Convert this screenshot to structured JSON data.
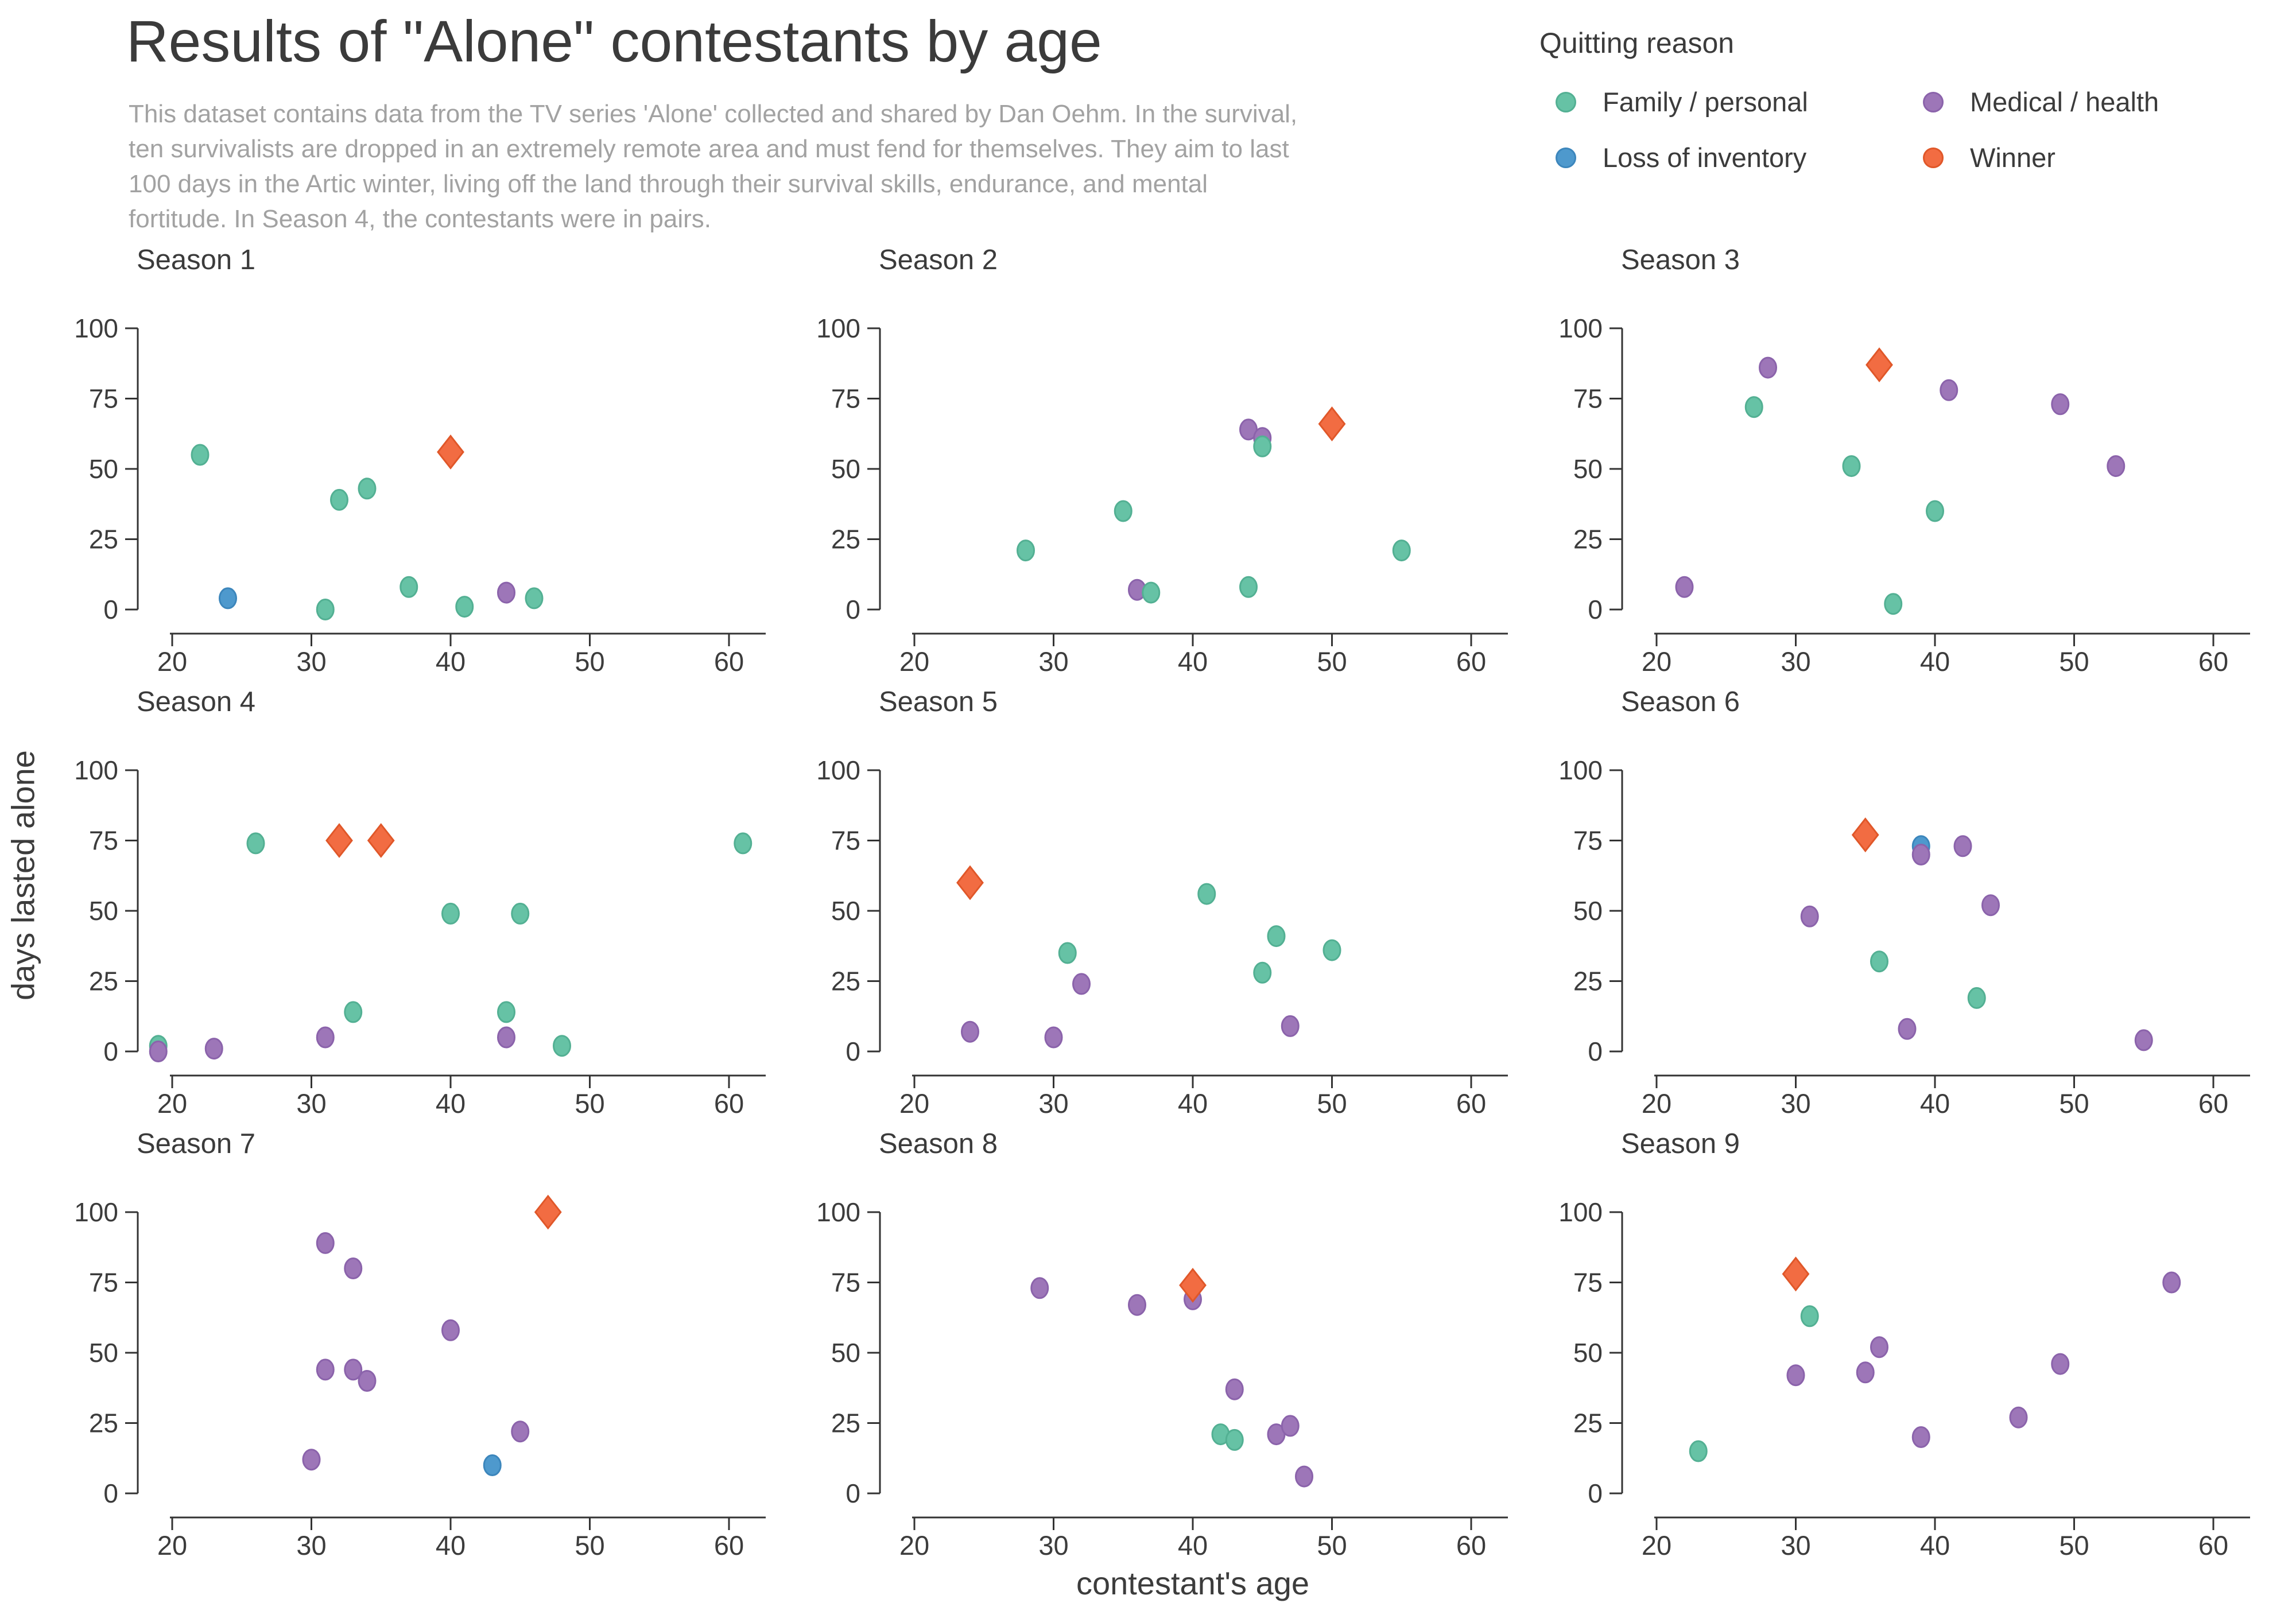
{
  "title": "Results of \"Alone\" contestants by age",
  "subtitle_lines": [
    "This dataset contains data from the TV series 'Alone' collected and shared by Dan Oehm. In the survival,",
    "ten survivalists are dropped in an extremely remote area and must fend for themselves. They aim to last",
    "100 days in the Artic winter, living off the land through their survival skills, endurance, and mental",
    "fortitude. In Season 4, the contestants were in pairs."
  ],
  "legend": {
    "title": "Quitting reason",
    "items": [
      {
        "id": "family",
        "label": "Family / personal",
        "color": "#66C2A5",
        "stroke": "#53B093"
      },
      {
        "id": "medical",
        "label": "Medical / health",
        "color": "#9D76B8",
        "stroke": "#8B63AB"
      },
      {
        "id": "inventory",
        "label": "Loss of inventory",
        "color": "#4E99CD",
        "stroke": "#3C86BC"
      },
      {
        "id": "winner",
        "label": "Winner",
        "color": "#F26C42",
        "stroke": "#E05729"
      }
    ]
  },
  "axes": {
    "x_label": "contestant's age",
    "y_label": "days lasted alone",
    "x_ticks": [
      20,
      30,
      40,
      50,
      60
    ],
    "y_ticks": [
      0,
      25,
      50,
      75,
      100
    ],
    "x_domain": [
      20,
      60
    ],
    "y_domain": [
      0,
      100
    ],
    "axis_color": "#333333",
    "tick_label_color": "#3c3c3c"
  },
  "chart_data": {
    "type": "scatter",
    "facet_by": "season",
    "x_field": "contestant's age",
    "y_field": "days lasted alone",
    "color_field": "quitting reason",
    "legend_position": "top-right",
    "grid": false,
    "xlim": [
      17,
      63
    ],
    "ylim": [
      0,
      100
    ],
    "facets": [
      {
        "title": "Season 1",
        "points": [
          {
            "x": 22,
            "y": 55,
            "reason": "family"
          },
          {
            "x": 24,
            "y": 4,
            "reason": "inventory"
          },
          {
            "x": 31,
            "y": 0,
            "reason": "family"
          },
          {
            "x": 32,
            "y": 39,
            "reason": "family"
          },
          {
            "x": 34,
            "y": 43,
            "reason": "family"
          },
          {
            "x": 37,
            "y": 8,
            "reason": "family"
          },
          {
            "x": 40,
            "y": 56,
            "reason": "winner"
          },
          {
            "x": 41,
            "y": 1,
            "reason": "family"
          },
          {
            "x": 44,
            "y": 6,
            "reason": "medical"
          },
          {
            "x": 46,
            "y": 4,
            "reason": "family"
          }
        ]
      },
      {
        "title": "Season 2",
        "points": [
          {
            "x": 28,
            "y": 21,
            "reason": "family"
          },
          {
            "x": 35,
            "y": 35,
            "reason": "family"
          },
          {
            "x": 36,
            "y": 7,
            "reason": "medical"
          },
          {
            "x": 37,
            "y": 6,
            "reason": "family"
          },
          {
            "x": 44,
            "y": 8,
            "reason": "family"
          },
          {
            "x": 44,
            "y": 64,
            "reason": "medical"
          },
          {
            "x": 45,
            "y": 61,
            "reason": "medical"
          },
          {
            "x": 45,
            "y": 58,
            "reason": "family"
          },
          {
            "x": 50,
            "y": 66,
            "reason": "winner"
          },
          {
            "x": 55,
            "y": 21,
            "reason": "family"
          }
        ]
      },
      {
        "title": "Season 3",
        "points": [
          {
            "x": 22,
            "y": 8,
            "reason": "medical"
          },
          {
            "x": 27,
            "y": 72,
            "reason": "family"
          },
          {
            "x": 28,
            "y": 86,
            "reason": "medical"
          },
          {
            "x": 34,
            "y": 51,
            "reason": "family"
          },
          {
            "x": 36,
            "y": 87,
            "reason": "winner"
          },
          {
            "x": 37,
            "y": 2,
            "reason": "family"
          },
          {
            "x": 40,
            "y": 35,
            "reason": "family"
          },
          {
            "x": 41,
            "y": 78,
            "reason": "medical"
          },
          {
            "x": 49,
            "y": 73,
            "reason": "medical"
          },
          {
            "x": 53,
            "y": 51,
            "reason": "medical"
          }
        ]
      },
      {
        "title": "Season 4",
        "points": [
          {
            "x": 19,
            "y": 2,
            "reason": "family"
          },
          {
            "x": 19,
            "y": 0,
            "reason": "medical"
          },
          {
            "x": 23,
            "y": 1,
            "reason": "medical"
          },
          {
            "x": 26,
            "y": 74,
            "reason": "family"
          },
          {
            "x": 31,
            "y": 5,
            "reason": "medical"
          },
          {
            "x": 32,
            "y": 75,
            "reason": "winner"
          },
          {
            "x": 33,
            "y": 14,
            "reason": "family"
          },
          {
            "x": 35,
            "y": 75,
            "reason": "winner"
          },
          {
            "x": 40,
            "y": 49,
            "reason": "family"
          },
          {
            "x": 44,
            "y": 14,
            "reason": "family"
          },
          {
            "x": 44,
            "y": 5,
            "reason": "medical"
          },
          {
            "x": 45,
            "y": 49,
            "reason": "family"
          },
          {
            "x": 48,
            "y": 2,
            "reason": "family"
          },
          {
            "x": 61,
            "y": 74,
            "reason": "family"
          }
        ]
      },
      {
        "title": "Season 5",
        "points": [
          {
            "x": 24,
            "y": 60,
            "reason": "winner"
          },
          {
            "x": 24,
            "y": 7,
            "reason": "medical"
          },
          {
            "x": 30,
            "y": 5,
            "reason": "medical"
          },
          {
            "x": 31,
            "y": 35,
            "reason": "family"
          },
          {
            "x": 32,
            "y": 24,
            "reason": "medical"
          },
          {
            "x": 41,
            "y": 56,
            "reason": "family"
          },
          {
            "x": 45,
            "y": 28,
            "reason": "family"
          },
          {
            "x": 46,
            "y": 41,
            "reason": "family"
          },
          {
            "x": 47,
            "y": 9,
            "reason": "medical"
          },
          {
            "x": 50,
            "y": 36,
            "reason": "family"
          }
        ]
      },
      {
        "title": "Season 6",
        "points": [
          {
            "x": 31,
            "y": 48,
            "reason": "medical"
          },
          {
            "x": 35,
            "y": 77,
            "reason": "winner"
          },
          {
            "x": 36,
            "y": 32,
            "reason": "family"
          },
          {
            "x": 38,
            "y": 8,
            "reason": "medical"
          },
          {
            "x": 39,
            "y": 73,
            "reason": "inventory"
          },
          {
            "x": 39,
            "y": 70,
            "reason": "medical"
          },
          {
            "x": 42,
            "y": 73,
            "reason": "medical"
          },
          {
            "x": 43,
            "y": 19,
            "reason": "family"
          },
          {
            "x": 44,
            "y": 52,
            "reason": "medical"
          },
          {
            "x": 55,
            "y": 4,
            "reason": "medical"
          }
        ]
      },
      {
        "title": "Season 7",
        "points": [
          {
            "x": 30,
            "y": 12,
            "reason": "medical"
          },
          {
            "x": 31,
            "y": 89,
            "reason": "medical"
          },
          {
            "x": 31,
            "y": 44,
            "reason": "medical"
          },
          {
            "x": 33,
            "y": 80,
            "reason": "medical"
          },
          {
            "x": 33,
            "y": 44,
            "reason": "medical"
          },
          {
            "x": 34,
            "y": 40,
            "reason": "medical"
          },
          {
            "x": 40,
            "y": 58,
            "reason": "medical"
          },
          {
            "x": 43,
            "y": 10,
            "reason": "inventory"
          },
          {
            "x": 45,
            "y": 22,
            "reason": "medical"
          },
          {
            "x": 47,
            "y": 100,
            "reason": "winner"
          }
        ]
      },
      {
        "title": "Season 8",
        "points": [
          {
            "x": 29,
            "y": 73,
            "reason": "medical"
          },
          {
            "x": 36,
            "y": 67,
            "reason": "medical"
          },
          {
            "x": 40,
            "y": 69,
            "reason": "medical"
          },
          {
            "x": 40,
            "y": 74,
            "reason": "winner"
          },
          {
            "x": 42,
            "y": 21,
            "reason": "family"
          },
          {
            "x": 43,
            "y": 19,
            "reason": "family"
          },
          {
            "x": 43,
            "y": 37,
            "reason": "medical"
          },
          {
            "x": 46,
            "y": 21,
            "reason": "medical"
          },
          {
            "x": 47,
            "y": 24,
            "reason": "medical"
          },
          {
            "x": 48,
            "y": 6,
            "reason": "medical"
          }
        ]
      },
      {
        "title": "Season 9",
        "points": [
          {
            "x": 23,
            "y": 15,
            "reason": "family"
          },
          {
            "x": 30,
            "y": 78,
            "reason": "winner"
          },
          {
            "x": 30,
            "y": 42,
            "reason": "medical"
          },
          {
            "x": 31,
            "y": 63,
            "reason": "family"
          },
          {
            "x": 35,
            "y": 43,
            "reason": "medical"
          },
          {
            "x": 36,
            "y": 52,
            "reason": "medical"
          },
          {
            "x": 39,
            "y": 20,
            "reason": "medical"
          },
          {
            "x": 46,
            "y": 27,
            "reason": "medical"
          },
          {
            "x": 49,
            "y": 46,
            "reason": "medical"
          },
          {
            "x": 57,
            "y": 75,
            "reason": "medical"
          }
        ]
      }
    ]
  }
}
